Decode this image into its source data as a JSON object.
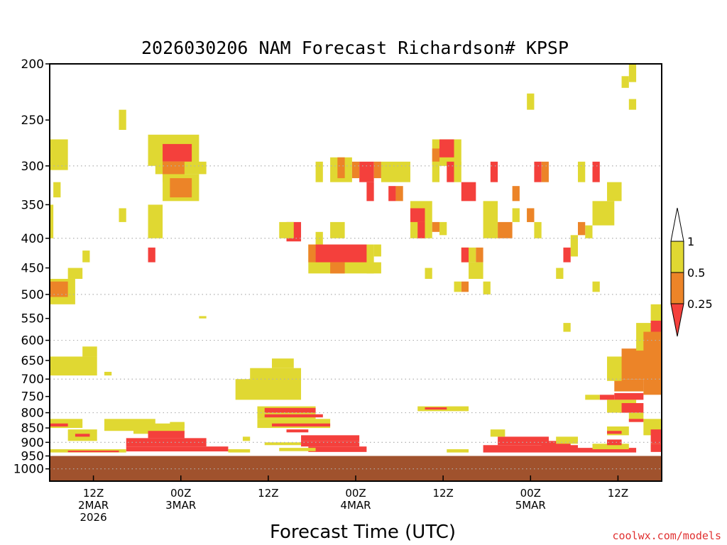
{
  "chart_data": {
    "type": "heatmap",
    "title": "2026030206 NAM Forecast Richardson# KPSP",
    "xlabel": "Forecast Time (UTC)",
    "ylabel": "",
    "y_axis": {
      "unit": "hPa",
      "ticks": [
        200,
        250,
        300,
        350,
        400,
        450,
        500,
        550,
        600,
        650,
        700,
        750,
        800,
        850,
        900,
        950,
        1000
      ],
      "gridlines": [
        300,
        400,
        500,
        600,
        700,
        800,
        900,
        1000
      ],
      "range": [
        1050,
        200
      ]
    },
    "x_axis": {
      "unit": "forecast hour",
      "range": [
        0,
        84
      ],
      "ticks": [
        {
          "hour": 6,
          "label": "12Z",
          "date": "2MAR",
          "year": "2026"
        },
        {
          "hour": 18,
          "label": "00Z",
          "date": "3MAR",
          "year": ""
        },
        {
          "hour": 30,
          "label": "12Z",
          "date": "",
          "year": ""
        },
        {
          "hour": 42,
          "label": "00Z",
          "date": "4MAR",
          "year": ""
        },
        {
          "hour": 54,
          "label": "12Z",
          "date": "",
          "year": ""
        },
        {
          "hour": 66,
          "label": "00Z",
          "date": "5MAR",
          "year": ""
        },
        {
          "hour": 78,
          "label": "12Z",
          "date": "",
          "year": ""
        }
      ]
    },
    "legend": {
      "placement": "right",
      "levels": [
        "1",
        "0.5",
        "0.25"
      ],
      "colors": {
        "above_1": "#ffffff",
        "0.5_1": "#e0d832",
        "0.25_0.5": "#ec8428",
        "below_0.25": "#f4403c"
      }
    },
    "ground_color": "#a0522d",
    "ground_below_hpa": 950,
    "category_colors": {
      "y": "#e0d832",
      "o": "#ec8428",
      "r": "#f4403c"
    },
    "regions": [
      {
        "c": "y",
        "h0": 0,
        "h1": 2.5,
        "p0": 270,
        "p1": 305
      },
      {
        "c": "y",
        "h0": 0.5,
        "h1": 1.5,
        "p0": 320,
        "p1": 340
      },
      {
        "c": "y",
        "h0": 0,
        "h1": 0.5,
        "p0": 350,
        "p1": 400
      },
      {
        "c": "y",
        "h0": 4.5,
        "h1": 5.5,
        "p0": 420,
        "p1": 440
      },
      {
        "c": "y",
        "h0": 2.5,
        "h1": 4.5,
        "p0": 450,
        "p1": 470
      },
      {
        "c": "y",
        "h0": 0,
        "h1": 3.5,
        "p0": 470,
        "p1": 520
      },
      {
        "c": "o",
        "h0": 0,
        "h1": 2.5,
        "p0": 475,
        "p1": 505
      },
      {
        "c": "y",
        "h0": 9.5,
        "h1": 10.5,
        "p0": 240,
        "p1": 260
      },
      {
        "c": "y",
        "h0": 9.5,
        "h1": 10.5,
        "p0": 355,
        "p1": 375
      },
      {
        "c": "y",
        "h0": 13.5,
        "h1": 15.5,
        "p0": 350,
        "p1": 400
      },
      {
        "c": "r",
        "h0": 13.5,
        "h1": 14.5,
        "p0": 415,
        "p1": 440
      },
      {
        "c": "y",
        "h0": 13.5,
        "h1": 20.5,
        "p0": 265,
        "p1": 300
      },
      {
        "c": "r",
        "h0": 15.5,
        "h1": 19.5,
        "p0": 275,
        "p1": 295
      },
      {
        "c": "y",
        "h0": 14.5,
        "h1": 21.5,
        "p0": 295,
        "p1": 310
      },
      {
        "c": "o",
        "h0": 15.5,
        "h1": 18.5,
        "p0": 295,
        "p1": 320
      },
      {
        "c": "y",
        "h0": 15.5,
        "h1": 20.5,
        "p0": 310,
        "p1": 345
      },
      {
        "c": "o",
        "h0": 16.5,
        "h1": 19.5,
        "p0": 315,
        "p1": 340
      },
      {
        "c": "y",
        "h0": 0,
        "h1": 6.5,
        "p0": 640,
        "p1": 690
      },
      {
        "c": "y",
        "h0": 4.5,
        "h1": 6.5,
        "p0": 615,
        "p1": 640
      },
      {
        "c": "y",
        "h0": 7.5,
        "h1": 8.5,
        "p0": 680,
        "p1": 690
      },
      {
        "c": "y",
        "h0": 20.5,
        "h1": 21.5,
        "p0": 545,
        "p1": 550
      },
      {
        "c": "y",
        "h0": 25.5,
        "h1": 34.5,
        "p0": 700,
        "p1": 760
      },
      {
        "c": "y",
        "h0": 27.5,
        "h1": 34.5,
        "p0": 670,
        "p1": 705
      },
      {
        "c": "y",
        "h0": 30.5,
        "h1": 33.5,
        "p0": 645,
        "p1": 670
      },
      {
        "c": "y",
        "h0": 0,
        "h1": 4.5,
        "p0": 820,
        "p1": 850
      },
      {
        "c": "r",
        "h0": 0,
        "h1": 2.5,
        "p0": 835,
        "p1": 845
      },
      {
        "c": "y",
        "h0": 2.5,
        "h1": 6.5,
        "p0": 855,
        "p1": 895
      },
      {
        "c": "r",
        "h0": 3.5,
        "h1": 5.5,
        "p0": 870,
        "p1": 880
      },
      {
        "c": "y",
        "h0": 7.5,
        "h1": 14.5,
        "p0": 820,
        "p1": 860
      },
      {
        "c": "y",
        "h0": 11.5,
        "h1": 18.5,
        "p0": 835,
        "p1": 870
      },
      {
        "c": "r",
        "h0": 13.5,
        "h1": 18.5,
        "p0": 860,
        "p1": 885
      },
      {
        "c": "y",
        "h0": 16.5,
        "h1": 18.5,
        "p0": 830,
        "p1": 850
      },
      {
        "c": "r",
        "h0": 10.5,
        "h1": 21.5,
        "p0": 885,
        "p1": 915
      },
      {
        "c": "r",
        "h0": 10.5,
        "h1": 24.5,
        "p0": 915,
        "p1": 933
      },
      {
        "c": "y",
        "h0": 0,
        "h1": 10.5,
        "p0": 925,
        "p1": 937
      },
      {
        "c": "r",
        "h0": 2.5,
        "h1": 9.5,
        "p0": 930,
        "p1": 936
      },
      {
        "c": "y",
        "h0": 24.5,
        "h1": 27.5,
        "p0": 925,
        "p1": 937
      },
      {
        "c": "y",
        "h0": 28.5,
        "h1": 36.5,
        "p0": 780,
        "p1": 820
      },
      {
        "c": "r",
        "h0": 29.5,
        "h1": 36.5,
        "p0": 785,
        "p1": 800
      },
      {
        "c": "r",
        "h0": 29.5,
        "h1": 37.5,
        "p0": 805,
        "p1": 815
      },
      {
        "c": "y",
        "h0": 28.5,
        "h1": 38.5,
        "p0": 820,
        "p1": 850
      },
      {
        "c": "r",
        "h0": 30.5,
        "h1": 38.5,
        "p0": 835,
        "p1": 845
      },
      {
        "c": "r",
        "h0": 32.5,
        "h1": 35.5,
        "p0": 855,
        "p1": 865
      },
      {
        "c": "y",
        "h0": 26.5,
        "h1": 27.5,
        "p0": 880,
        "p1": 895
      },
      {
        "c": "r",
        "h0": 34.5,
        "h1": 42.5,
        "p0": 875,
        "p1": 895
      },
      {
        "c": "y",
        "h0": 29.5,
        "h1": 34.5,
        "p0": 900,
        "p1": 910
      },
      {
        "c": "r",
        "h0": 34.5,
        "h1": 42.5,
        "p0": 895,
        "p1": 915
      },
      {
        "c": "r",
        "h0": 35.5,
        "h1": 43.5,
        "p0": 915,
        "p1": 935
      },
      {
        "c": "y",
        "h0": 31.5,
        "h1": 36.5,
        "p0": 920,
        "p1": 932
      },
      {
        "c": "y",
        "h0": 36.5,
        "h1": 37.5,
        "p0": 390,
        "p1": 410
      },
      {
        "c": "r",
        "h0": 32.5,
        "h1": 34.5,
        "p0": 375,
        "p1": 405
      },
      {
        "c": "y",
        "h0": 31.5,
        "h1": 33.5,
        "p0": 375,
        "p1": 400
      },
      {
        "c": "y",
        "h0": 38.5,
        "h1": 40.5,
        "p0": 375,
        "p1": 400
      },
      {
        "c": "y",
        "h0": 35.5,
        "h1": 44.5,
        "p0": 410,
        "p1": 460
      },
      {
        "c": "o",
        "h0": 35.5,
        "h1": 36.5,
        "p0": 410,
        "p1": 440
      },
      {
        "c": "r",
        "h0": 36.5,
        "h1": 43.5,
        "p0": 410,
        "p1": 440
      },
      {
        "c": "o",
        "h0": 38.5,
        "h1": 40.5,
        "p0": 440,
        "p1": 460
      },
      {
        "c": "y",
        "h0": 43.5,
        "h1": 45.5,
        "p0": 440,
        "p1": 460
      },
      {
        "c": "y",
        "h0": 44.5,
        "h1": 45.5,
        "p0": 410,
        "p1": 430
      },
      {
        "c": "y",
        "h0": 36.5,
        "h1": 37.5,
        "p0": 295,
        "p1": 320
      },
      {
        "c": "y",
        "h0": 38.5,
        "h1": 41.5,
        "p0": 290,
        "p1": 320
      },
      {
        "c": "o",
        "h0": 39.5,
        "h1": 40.5,
        "p0": 290,
        "p1": 315
      },
      {
        "c": "r",
        "h0": 42.5,
        "h1": 44.5,
        "p0": 295,
        "p1": 320
      },
      {
        "c": "o",
        "h0": 41.5,
        "h1": 42.5,
        "p0": 295,
        "p1": 315
      },
      {
        "c": "o",
        "h0": 44.5,
        "h1": 45.5,
        "p0": 295,
        "p1": 315
      },
      {
        "c": "r",
        "h0": 43.5,
        "h1": 44.5,
        "p0": 320,
        "p1": 345
      },
      {
        "c": "y",
        "h0": 45.5,
        "h1": 49.5,
        "p0": 295,
        "p1": 320
      },
      {
        "c": "r",
        "h0": 46.5,
        "h1": 47.5,
        "p0": 325,
        "p1": 345
      },
      {
        "c": "o",
        "h0": 47.5,
        "h1": 48.5,
        "p0": 325,
        "p1": 345
      },
      {
        "c": "y",
        "h0": 52.5,
        "h1": 56.5,
        "p0": 270,
        "p1": 300
      },
      {
        "c": "r",
        "h0": 53.5,
        "h1": 55.5,
        "p0": 270,
        "p1": 290
      },
      {
        "c": "o",
        "h0": 52.5,
        "h1": 53.5,
        "p0": 280,
        "p1": 295
      },
      {
        "c": "y",
        "h0": 52.5,
        "h1": 53.5,
        "p0": 295,
        "p1": 320
      },
      {
        "c": "r",
        "h0": 54.5,
        "h1": 55.5,
        "p0": 295,
        "p1": 320
      },
      {
        "c": "y",
        "h0": 55.5,
        "h1": 56.5,
        "p0": 295,
        "p1": 320
      },
      {
        "c": "r",
        "h0": 56.5,
        "h1": 58.5,
        "p0": 320,
        "p1": 345
      },
      {
        "c": "y",
        "h0": 49.5,
        "h1": 52.5,
        "p0": 345,
        "p1": 400
      },
      {
        "c": "r",
        "h0": 49.5,
        "h1": 51.5,
        "p0": 355,
        "p1": 375
      },
      {
        "c": "r",
        "h0": 50.5,
        "h1": 51.5,
        "p0": 375,
        "p1": 400
      },
      {
        "c": "o",
        "h0": 52.5,
        "h1": 53.5,
        "p0": 375,
        "p1": 390
      },
      {
        "c": "y",
        "h0": 53.5,
        "h1": 54.5,
        "p0": 375,
        "p1": 395
      },
      {
        "c": "r",
        "h0": 60.5,
        "h1": 61.5,
        "p0": 295,
        "p1": 320
      },
      {
        "c": "y",
        "h0": 59.5,
        "h1": 61.5,
        "p0": 345,
        "p1": 400
      },
      {
        "c": "o",
        "h0": 61.5,
        "h1": 63.5,
        "p0": 375,
        "p1": 400
      },
      {
        "c": "y",
        "h0": 63.5,
        "h1": 64.5,
        "p0": 355,
        "p1": 375
      },
      {
        "c": "o",
        "h0": 63.5,
        "h1": 64.5,
        "p0": 325,
        "p1": 345
      },
      {
        "c": "y",
        "h0": 65.5,
        "h1": 66.5,
        "p0": 355,
        "p1": 375
      },
      {
        "c": "o",
        "h0": 65.5,
        "h1": 66.5,
        "p0": 355,
        "p1": 375
      },
      {
        "c": "y",
        "h0": 66.5,
        "h1": 67.5,
        "p0": 375,
        "p1": 400
      },
      {
        "c": "r",
        "h0": 66.5,
        "h1": 67.5,
        "p0": 295,
        "p1": 320
      },
      {
        "c": "o",
        "h0": 67.5,
        "h1": 68.5,
        "p0": 295,
        "p1": 320
      },
      {
        "c": "y",
        "h0": 72.5,
        "h1": 73.5,
        "p0": 295,
        "p1": 320
      },
      {
        "c": "r",
        "h0": 74.5,
        "h1": 75.5,
        "p0": 295,
        "p1": 320
      },
      {
        "c": "y",
        "h0": 76.5,
        "h1": 78.5,
        "p0": 320,
        "p1": 345
      },
      {
        "c": "y",
        "h0": 74.5,
        "h1": 77.5,
        "p0": 345,
        "p1": 380
      },
      {
        "c": "y",
        "h0": 73.5,
        "h1": 74.5,
        "p0": 380,
        "p1": 400
      },
      {
        "c": "o",
        "h0": 72.5,
        "h1": 73.5,
        "p0": 375,
        "p1": 395
      },
      {
        "c": "y",
        "h0": 71.5,
        "h1": 72.5,
        "p0": 395,
        "p1": 430
      },
      {
        "c": "r",
        "h0": 70.5,
        "h1": 71.5,
        "p0": 415,
        "p1": 440
      },
      {
        "c": "y",
        "h0": 69.5,
        "h1": 70.5,
        "p0": 450,
        "p1": 470
      },
      {
        "c": "y",
        "h0": 74.5,
        "h1": 75.5,
        "p0": 475,
        "p1": 495
      },
      {
        "c": "y",
        "h0": 79.5,
        "h1": 80.5,
        "p0": 200,
        "p1": 215
      },
      {
        "c": "y",
        "h0": 78.5,
        "h1": 79.5,
        "p0": 210,
        "p1": 220
      },
      {
        "c": "y",
        "h0": 79.5,
        "h1": 80.5,
        "p0": 230,
        "p1": 240
      },
      {
        "c": "y",
        "h0": 65.5,
        "h1": 66.5,
        "p0": 225,
        "p1": 240
      },
      {
        "c": "y",
        "h0": 56.5,
        "h1": 58.5,
        "p0": 415,
        "p1": 440
      },
      {
        "c": "r",
        "h0": 56.5,
        "h1": 57.5,
        "p0": 415,
        "p1": 440
      },
      {
        "c": "o",
        "h0": 58.5,
        "h1": 59.5,
        "p0": 415,
        "p1": 440
      },
      {
        "c": "y",
        "h0": 57.5,
        "h1": 59.5,
        "p0": 440,
        "p1": 470
      },
      {
        "c": "y",
        "h0": 59.5,
        "h1": 60.5,
        "p0": 475,
        "p1": 500
      },
      {
        "c": "o",
        "h0": 56.5,
        "h1": 57.5,
        "p0": 475,
        "p1": 495
      },
      {
        "c": "y",
        "h0": 55.5,
        "h1": 56.5,
        "p0": 475,
        "p1": 495
      },
      {
        "c": "y",
        "h0": 51.5,
        "h1": 52.5,
        "p0": 450,
        "p1": 470
      },
      {
        "c": "y",
        "h0": 70.5,
        "h1": 71.5,
        "p0": 560,
        "p1": 580
      },
      {
        "c": "y",
        "h0": 50.5,
        "h1": 57.5,
        "p0": 780,
        "p1": 795
      },
      {
        "c": "r",
        "h0": 51.5,
        "h1": 54.5,
        "p0": 783,
        "p1": 790
      },
      {
        "c": "y",
        "h0": 54.5,
        "h1": 57.5,
        "p0": 925,
        "p1": 937
      },
      {
        "c": "r",
        "h0": 59.5,
        "h1": 72.5,
        "p0": 910,
        "p1": 937
      },
      {
        "c": "r",
        "h0": 61.5,
        "h1": 68.5,
        "p0": 880,
        "p1": 910
      },
      {
        "c": "y",
        "h0": 60.5,
        "h1": 62.5,
        "p0": 855,
        "p1": 880
      },
      {
        "c": "r",
        "h0": 67.5,
        "h1": 71.5,
        "p0": 895,
        "p1": 915
      },
      {
        "c": "y",
        "h0": 69.5,
        "h1": 72.5,
        "p0": 880,
        "p1": 905
      },
      {
        "c": "r",
        "h0": 72.5,
        "h1": 80.5,
        "p0": 920,
        "p1": 937
      },
      {
        "c": "y",
        "h0": 74.5,
        "h1": 79.5,
        "p0": 905,
        "p1": 925
      },
      {
        "c": "r",
        "h0": 76.5,
        "h1": 78.5,
        "p0": 890,
        "p1": 910
      },
      {
        "c": "y",
        "h0": 76.5,
        "h1": 79.5,
        "p0": 845,
        "p1": 875
      },
      {
        "c": "r",
        "h0": 76.5,
        "h1": 78.5,
        "p0": 860,
        "p1": 870
      },
      {
        "c": "r",
        "h0": 75.5,
        "h1": 77.5,
        "p0": 745,
        "p1": 760
      },
      {
        "c": "y",
        "h0": 73.5,
        "h1": 75.5,
        "p0": 745,
        "p1": 760
      },
      {
        "c": "r",
        "h0": 77.5,
        "h1": 81.5,
        "p0": 740,
        "p1": 760
      },
      {
        "c": "y",
        "h0": 76.5,
        "h1": 80.5,
        "p0": 760,
        "p1": 800
      },
      {
        "c": "r",
        "h0": 78.5,
        "h1": 81.5,
        "p0": 770,
        "p1": 800
      },
      {
        "c": "o",
        "h0": 77.5,
        "h1": 81.5,
        "p0": 700,
        "p1": 735
      },
      {
        "c": "y",
        "h0": 76.5,
        "h1": 78.5,
        "p0": 690,
        "p1": 705
      },
      {
        "c": "y",
        "h0": 76.5,
        "h1": 79.5,
        "p0": 640,
        "p1": 700
      },
      {
        "c": "o",
        "h0": 78.5,
        "h1": 84,
        "p0": 620,
        "p1": 700
      },
      {
        "c": "y",
        "h0": 80.5,
        "h1": 84,
        "p0": 560,
        "p1": 625
      },
      {
        "c": "o",
        "h0": 81.5,
        "h1": 84,
        "p0": 580,
        "p1": 745
      },
      {
        "c": "y",
        "h0": 82.5,
        "h1": 84,
        "p0": 520,
        "p1": 560
      },
      {
        "c": "r",
        "h0": 82.5,
        "h1": 84,
        "p0": 555,
        "p1": 580
      },
      {
        "c": "y",
        "h0": 79.5,
        "h1": 81.5,
        "p0": 800,
        "p1": 830
      },
      {
        "c": "r",
        "h0": 79.5,
        "h1": 81.5,
        "p0": 820,
        "p1": 830
      },
      {
        "c": "y",
        "h0": 81.5,
        "h1": 84,
        "p0": 820,
        "p1": 875
      },
      {
        "c": "r",
        "h0": 82.5,
        "h1": 84,
        "p0": 855,
        "p1": 905
      },
      {
        "c": "y",
        "h0": 82.5,
        "h1": 84,
        "p0": 905,
        "p1": 925
      },
      {
        "c": "r",
        "h0": 82.5,
        "h1": 84,
        "p0": 905,
        "p1": 935
      }
    ]
  },
  "credit": {
    "text": "coolwx.com/models",
    "color": "#e03030"
  }
}
